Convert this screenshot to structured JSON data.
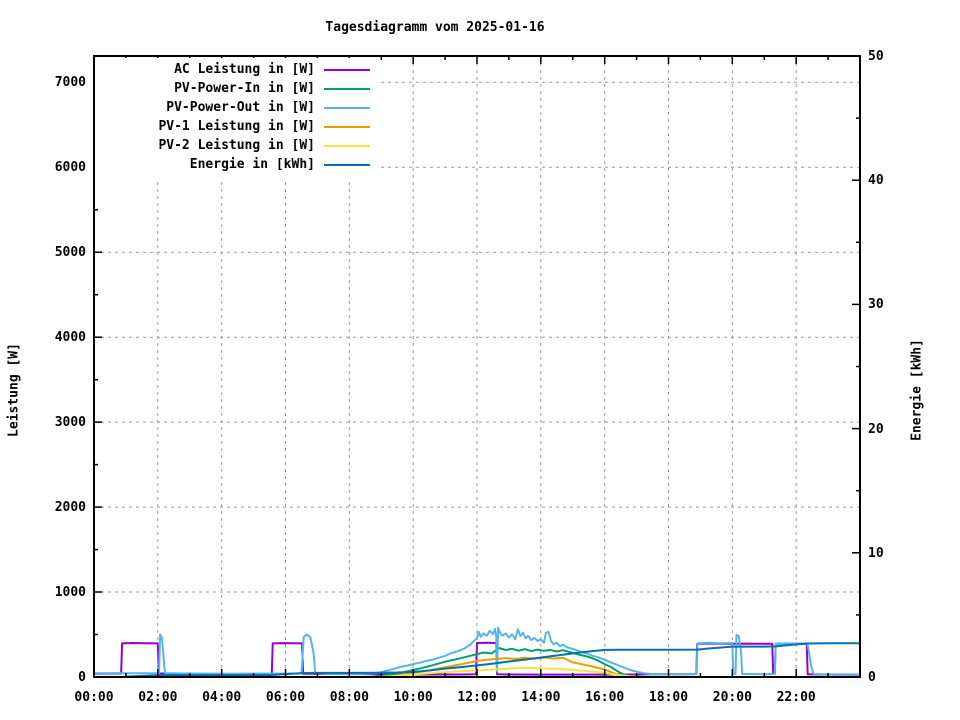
{
  "page": {
    "background": "#ffffff",
    "axis_color": "#000000",
    "grid_color": "#9a9a9a"
  },
  "chart_data": {
    "type": "line",
    "title": "Tagesdiagramm vom 2025-01-16",
    "xlabel": "",
    "ylabel_left": "Leistung [W]",
    "ylabel_right": "Energie [kWh]",
    "xlim_hours": [
      0,
      24
    ],
    "ylim_left": [
      0,
      7310
    ],
    "ylim_right": [
      0,
      50
    ],
    "x_tick_hours": [
      0,
      2,
      4,
      6,
      8,
      10,
      12,
      14,
      16,
      18,
      20,
      22
    ],
    "x_tick_labels": [
      "00:00",
      "02:00",
      "04:00",
      "06:00",
      "08:00",
      "10:00",
      "12:00",
      "14:00",
      "16:00",
      "18:00",
      "20:00",
      "22:00"
    ],
    "x_minor_every_hours": 1,
    "yticks_left": [
      0,
      1000,
      2000,
      3000,
      4000,
      5000,
      6000,
      7000
    ],
    "y_minor_left": 500,
    "yticks_right": [
      0,
      10,
      20,
      30,
      40,
      50
    ],
    "y_minor_right": 5,
    "grid": true,
    "legend_position": "top-left",
    "series": [
      {
        "name": "AC Leistung in [W]",
        "color": "#9400D3",
        "axis": "left",
        "points": [
          [
            0,
            40
          ],
          [
            0.4,
            40
          ],
          [
            0.85,
            40
          ],
          [
            0.88,
            396
          ],
          [
            1.2,
            400
          ],
          [
            1.6,
            397
          ],
          [
            2.0,
            396
          ],
          [
            2.03,
            42
          ],
          [
            2.5,
            40
          ],
          [
            3,
            38
          ],
          [
            3.5,
            37
          ],
          [
            4,
            36
          ],
          [
            4.5,
            36
          ],
          [
            5,
            36
          ],
          [
            5.57,
            38
          ],
          [
            5.6,
            396
          ],
          [
            6,
            399
          ],
          [
            6.3,
            397
          ],
          [
            6.52,
            396
          ],
          [
            6.55,
            38
          ],
          [
            7,
            36
          ],
          [
            7.5,
            35
          ],
          [
            8,
            34
          ],
          [
            9,
            32
          ],
          [
            10,
            30
          ],
          [
            11,
            30
          ],
          [
            11.5,
            30
          ],
          [
            11.97,
            32
          ],
          [
            12,
            400
          ],
          [
            12.3,
            403
          ],
          [
            12.6,
            400
          ],
          [
            12.63,
            32
          ],
          [
            13,
            30
          ],
          [
            14,
            28
          ],
          [
            15,
            28
          ],
          [
            16,
            28
          ],
          [
            16.5,
            30
          ],
          [
            17,
            30
          ],
          [
            17.5,
            32
          ],
          [
            18,
            32
          ],
          [
            18.5,
            32
          ],
          [
            18.87,
            34
          ],
          [
            18.9,
            392
          ],
          [
            19.3,
            394
          ],
          [
            19.8,
            391
          ],
          [
            20.3,
            393
          ],
          [
            20.8,
            391
          ],
          [
            21.25,
            391
          ],
          [
            21.28,
            42
          ],
          [
            21.33,
            42
          ],
          [
            21.36,
            391
          ],
          [
            21.8,
            393
          ],
          [
            22.33,
            391
          ],
          [
            22.36,
            32
          ],
          [
            22.8,
            30
          ],
          [
            23.3,
            28
          ],
          [
            24,
            28
          ]
        ]
      },
      {
        "name": "PV-Power-In in [W]",
        "color": "#009E73",
        "axis": "left",
        "points": [
          [
            0,
            0
          ],
          [
            8.7,
            0
          ],
          [
            9,
            14
          ],
          [
            9.3,
            30
          ],
          [
            9.6,
            50
          ],
          [
            10,
            82
          ],
          [
            10.3,
            108
          ],
          [
            10.6,
            138
          ],
          [
            11,
            180
          ],
          [
            11.3,
            205
          ],
          [
            11.6,
            232
          ],
          [
            12,
            268
          ],
          [
            12.2,
            288
          ],
          [
            12.45,
            278
          ],
          [
            12.7,
            340
          ],
          [
            12.9,
            318
          ],
          [
            13.1,
            332
          ],
          [
            13.3,
            310
          ],
          [
            13.5,
            328
          ],
          [
            13.7,
            305
          ],
          [
            13.9,
            322
          ],
          [
            14.1,
            308
          ],
          [
            14.3,
            318
          ],
          [
            14.5,
            300
          ],
          [
            14.7,
            315
          ],
          [
            14.85,
            298
          ],
          [
            15,
            282
          ],
          [
            15.2,
            262
          ],
          [
            15.4,
            246
          ],
          [
            15.6,
            222
          ],
          [
            15.8,
            192
          ],
          [
            16,
            152
          ],
          [
            16.2,
            118
          ],
          [
            16.35,
            80
          ],
          [
            16.5,
            46
          ],
          [
            16.7,
            18
          ],
          [
            16.9,
            6
          ],
          [
            17.2,
            0
          ],
          [
            24,
            0
          ]
        ]
      },
      {
        "name": "PV-Power-Out in [W]",
        "color": "#56B4E9",
        "axis": "left",
        "points": [
          [
            0,
            46
          ],
          [
            0.3,
            44
          ],
          [
            0.6,
            46
          ],
          [
            1,
            43
          ],
          [
            1.4,
            45
          ],
          [
            1.8,
            44
          ],
          [
            2.04,
            45
          ],
          [
            2.07,
            500
          ],
          [
            2.13,
            455
          ],
          [
            2.18,
            240
          ],
          [
            2.22,
            46
          ],
          [
            2.6,
            42
          ],
          [
            3,
            40
          ],
          [
            3.5,
            38
          ],
          [
            4,
            37
          ],
          [
            4.5,
            36
          ],
          [
            5,
            38
          ],
          [
            5.5,
            40
          ],
          [
            6,
            40
          ],
          [
            6.5,
            42
          ],
          [
            6.57,
            470
          ],
          [
            6.67,
            502
          ],
          [
            6.78,
            468
          ],
          [
            6.88,
            280
          ],
          [
            6.93,
            55
          ],
          [
            7.2,
            38
          ],
          [
            7.6,
            36
          ],
          [
            8,
            35
          ],
          [
            8.4,
            36
          ],
          [
            8.8,
            44
          ],
          [
            9,
            58
          ],
          [
            9.2,
            76
          ],
          [
            9.4,
            96
          ],
          [
            9.6,
            118
          ],
          [
            9.8,
            134
          ],
          [
            10,
            152
          ],
          [
            10.2,
            168
          ],
          [
            10.4,
            188
          ],
          [
            10.6,
            204
          ],
          [
            10.8,
            226
          ],
          [
            11,
            248
          ],
          [
            11.2,
            282
          ],
          [
            11.4,
            304
          ],
          [
            11.6,
            334
          ],
          [
            11.8,
            382
          ],
          [
            11.9,
            424
          ],
          [
            12,
            452
          ],
          [
            12.05,
            532
          ],
          [
            12.12,
            474
          ],
          [
            12.2,
            514
          ],
          [
            12.3,
            484
          ],
          [
            12.4,
            544
          ],
          [
            12.5,
            504
          ],
          [
            12.56,
            566
          ],
          [
            12.6,
            486
          ],
          [
            12.63,
            62
          ],
          [
            12.66,
            582
          ],
          [
            12.72,
            522
          ],
          [
            12.8,
            486
          ],
          [
            12.9,
            512
          ],
          [
            13,
            464
          ],
          [
            13.1,
            502
          ],
          [
            13.2,
            444
          ],
          [
            13.28,
            562
          ],
          [
            13.36,
            482
          ],
          [
            13.44,
            524
          ],
          [
            13.52,
            454
          ],
          [
            13.6,
            484
          ],
          [
            13.7,
            434
          ],
          [
            13.8,
            462
          ],
          [
            13.9,
            424
          ],
          [
            14,
            444
          ],
          [
            14.1,
            402
          ],
          [
            14.16,
            522
          ],
          [
            14.24,
            532
          ],
          [
            14.32,
            424
          ],
          [
            14.4,
            384
          ],
          [
            14.5,
            404
          ],
          [
            14.6,
            362
          ],
          [
            14.7,
            382
          ],
          [
            14.8,
            352
          ],
          [
            15,
            332
          ],
          [
            15.2,
            302
          ],
          [
            15.4,
            282
          ],
          [
            15.6,
            252
          ],
          [
            15.8,
            232
          ],
          [
            16,
            202
          ],
          [
            16.2,
            172
          ],
          [
            16.4,
            142
          ],
          [
            16.6,
            112
          ],
          [
            16.8,
            82
          ],
          [
            17,
            62
          ],
          [
            17.2,
            46
          ],
          [
            17.4,
            36
          ],
          [
            17.8,
            34
          ],
          [
            18.2,
            33
          ],
          [
            18.6,
            34
          ],
          [
            18.88,
            36
          ],
          [
            18.91,
            398
          ],
          [
            19.2,
            402
          ],
          [
            19.6,
            398
          ],
          [
            20,
            400
          ],
          [
            20.03,
            36
          ],
          [
            20.1,
            36
          ],
          [
            20.13,
            496
          ],
          [
            20.2,
            482
          ],
          [
            20.27,
            300
          ],
          [
            20.31,
            36
          ],
          [
            20.7,
            34
          ],
          [
            21.1,
            33
          ],
          [
            21.33,
            35
          ],
          [
            21.36,
            392
          ],
          [
            21.7,
            395
          ],
          [
            22,
            392
          ],
          [
            22.35,
            391
          ],
          [
            22.4,
            298
          ],
          [
            22.46,
            148
          ],
          [
            22.52,
            58
          ],
          [
            22.57,
            26
          ],
          [
            23,
            26
          ],
          [
            23.5,
            25
          ],
          [
            24,
            25
          ]
        ]
      },
      {
        "name": "PV-1 Leistung in [W]",
        "color": "#E69F00",
        "axis": "left",
        "points": [
          [
            0,
            0
          ],
          [
            9.1,
            0
          ],
          [
            9.5,
            18
          ],
          [
            10,
            48
          ],
          [
            10.4,
            72
          ],
          [
            10.8,
            100
          ],
          [
            11.2,
            128
          ],
          [
            11.6,
            158
          ],
          [
            12,
            188
          ],
          [
            12.3,
            202
          ],
          [
            12.6,
            212
          ],
          [
            12.9,
            222
          ],
          [
            13.2,
            212
          ],
          [
            13.5,
            226
          ],
          [
            13.8,
            216
          ],
          [
            14.1,
            228
          ],
          [
            14.4,
            218
          ],
          [
            14.7,
            225
          ],
          [
            15,
            172
          ],
          [
            15.3,
            148
          ],
          [
            15.6,
            125
          ],
          [
            16,
            88
          ],
          [
            16.3,
            42
          ],
          [
            16.6,
            10
          ],
          [
            16.8,
            0
          ],
          [
            24,
            0
          ]
        ]
      },
      {
        "name": "PV-2 Leistung in [W]",
        "color": "#F0E442",
        "axis": "left",
        "points": [
          [
            0,
            0
          ],
          [
            8.9,
            0
          ],
          [
            9.4,
            12
          ],
          [
            10,
            30
          ],
          [
            10.5,
            45
          ],
          [
            11,
            58
          ],
          [
            11.5,
            68
          ],
          [
            12,
            76
          ],
          [
            12.5,
            88
          ],
          [
            13,
            99
          ],
          [
            13.5,
            110
          ],
          [
            14,
            104
          ],
          [
            14.5,
            95
          ],
          [
            15,
            84
          ],
          [
            15.5,
            68
          ],
          [
            16,
            48
          ],
          [
            16.4,
            24
          ],
          [
            16.8,
            8
          ],
          [
            17.3,
            0
          ],
          [
            24,
            0
          ]
        ]
      },
      {
        "name": "Energie in [kWh]",
        "color": "#0072B2",
        "axis": "right",
        "points": [
          [
            0,
            0
          ],
          [
            0.85,
            0
          ],
          [
            1.2,
            0.05
          ],
          [
            1.6,
            0.1
          ],
          [
            2.05,
            0.15
          ],
          [
            3,
            0.15
          ],
          [
            4,
            0.15
          ],
          [
            5.5,
            0.15
          ],
          [
            5.8,
            0.2
          ],
          [
            6.2,
            0.26
          ],
          [
            6.6,
            0.32
          ],
          [
            7,
            0.33
          ],
          [
            8,
            0.33
          ],
          [
            9,
            0.34
          ],
          [
            9.5,
            0.36
          ],
          [
            10,
            0.4
          ],
          [
            10.5,
            0.52
          ],
          [
            11,
            0.68
          ],
          [
            11.5,
            0.8
          ],
          [
            12,
            0.93
          ],
          [
            12.5,
            1.08
          ],
          [
            13,
            1.25
          ],
          [
            13.5,
            1.4
          ],
          [
            14,
            1.57
          ],
          [
            14.5,
            1.73
          ],
          [
            15,
            1.9
          ],
          [
            15.5,
            2.05
          ],
          [
            16,
            2.18
          ],
          [
            16.5,
            2.2
          ],
          [
            17,
            2.2
          ],
          [
            18,
            2.2
          ],
          [
            18.9,
            2.21
          ],
          [
            19.3,
            2.3
          ],
          [
            19.7,
            2.38
          ],
          [
            20,
            2.45
          ],
          [
            21,
            2.45
          ],
          [
            21.35,
            2.46
          ],
          [
            21.8,
            2.58
          ],
          [
            22.35,
            2.7
          ],
          [
            23,
            2.72
          ],
          [
            24,
            2.72
          ]
        ]
      }
    ]
  }
}
